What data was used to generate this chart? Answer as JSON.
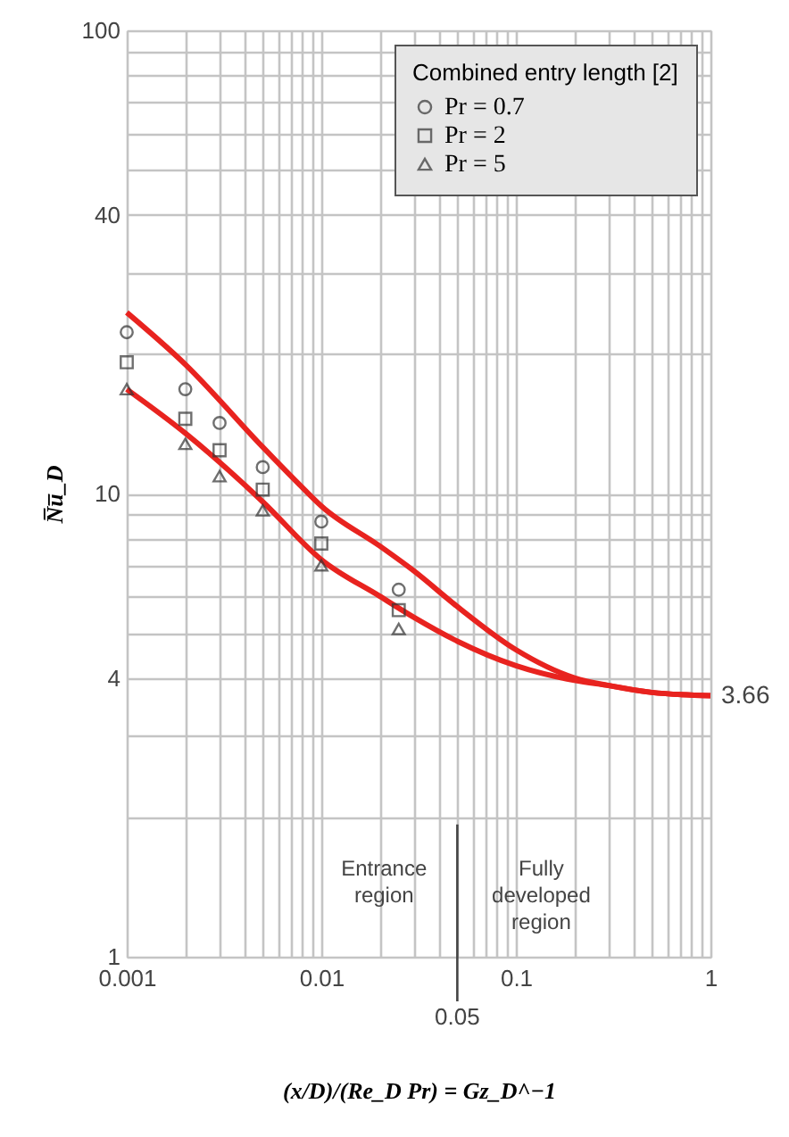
{
  "chart_data": {
    "type": "line",
    "xlabel": "(x/D)/(Re_D Pr) = Gz_D^−1",
    "ylabel": "N̅u̅_D",
    "legend_title": "Combined entry length [2]",
    "legend": "top right",
    "log": "xy",
    "grid": true,
    "xlim": [
      0.001,
      1
    ],
    "ylim": [
      1,
      100
    ],
    "xticks": [
      0.001,
      {
        "value": 0.002,
        "label": null
      },
      {
        "value": 0.003,
        "label": null
      },
      {
        "value": 0.004,
        "label": null
      },
      {
        "value": 0.005,
        "label": null
      },
      {
        "value": 0.006,
        "label": null
      },
      {
        "value": 0.007,
        "label": null
      },
      {
        "value": 0.008,
        "label": null
      },
      {
        "value": 0.009,
        "label": null
      },
      0.01,
      {
        "value": 0.02,
        "label": null
      },
      {
        "value": 0.03,
        "label": null
      },
      {
        "value": 0.04,
        "label": null
      },
      {
        "value": 0.05,
        "label": null
      },
      {
        "value": 0.06,
        "label": null
      },
      {
        "value": 0.07,
        "label": null
      },
      {
        "value": 0.08,
        "label": null
      },
      {
        "value": 0.09,
        "label": null
      },
      0.1,
      {
        "value": 0.2,
        "label": null
      },
      {
        "value": 0.3,
        "label": null
      },
      {
        "value": 0.4,
        "label": null
      },
      {
        "value": 0.5,
        "label": null
      },
      {
        "value": 0.6,
        "label": null
      },
      {
        "value": 0.7,
        "label": null
      },
      {
        "value": 0.8,
        "label": null
      },
      {
        "value": 0.9,
        "label": null
      },
      1
    ],
    "yticks": [
      1,
      {
        "value": 2,
        "label": null
      },
      {
        "value": 3,
        "label": null
      },
      4,
      {
        "value": 5,
        "label": null
      },
      {
        "value": 6,
        "label": null
      },
      {
        "value": 7,
        "label": null
      },
      {
        "value": 8,
        "label": null
      },
      {
        "value": 9,
        "label": null
      },
      10,
      {
        "value": 20,
        "label": null
      },
      {
        "value": 30,
        "label": null
      },
      40,
      {
        "value": 50,
        "label": null
      },
      {
        "value": 60,
        "label": null
      },
      {
        "value": 70,
        "label": null
      },
      {
        "value": 80,
        "label": null
      },
      {
        "value": 90,
        "label": null
      },
      100
    ],
    "series": [
      {
        "type": "line",
        "color": "#e8231f",
        "x": [
          0.001,
          0.002,
          0.005,
          0.008,
          0.01,
          0.02,
          0.03,
          0.05,
          0.1,
          0.2,
          0.3,
          0.5,
          1
        ],
        "values": [
          24.6,
          19,
          12.6,
          10.3,
          9.4,
          7.7,
          6.8,
          5.7,
          4.6,
          4.0,
          3.85,
          3.72,
          3.66
        ]
      },
      {
        "type": "line",
        "color": "#e8231f",
        "x": [
          0.001,
          0.002,
          0.005,
          0.01,
          0.02,
          0.03,
          0.05,
          0.1,
          0.2,
          0.3,
          0.5,
          1
        ],
        "values": [
          16.8,
          13.5,
          9.6,
          7.2,
          6.0,
          5.4,
          4.8,
          4.25,
          3.95,
          3.85,
          3.72,
          3.66
        ]
      },
      {
        "type": "scatter",
        "name": "Pr = 0.7",
        "marker": "circle",
        "color": "#333333",
        "x": [
          0.001,
          0.002,
          0.003,
          0.005,
          0.01,
          0.025
        ],
        "values": [
          22.3,
          16.8,
          14.2,
          11.4,
          8.7,
          6.2
        ]
      },
      {
        "type": "scatter",
        "name": "Pr = 2",
        "marker": "square",
        "color": "#333333",
        "x": [
          0.001,
          0.002,
          0.003,
          0.005,
          0.01,
          0.025
        ],
        "values": [
          19.2,
          14.5,
          12.4,
          10.2,
          7.8,
          5.6
        ]
      },
      {
        "type": "scatter",
        "name": "Pr = 5",
        "marker": "triangle",
        "color": "#333333",
        "x": [
          0.001,
          0.002,
          0.003,
          0.005,
          0.01,
          0.025
        ],
        "values": [
          16.8,
          12.8,
          10.9,
          9.2,
          7.0,
          5.1
        ]
      }
    ],
    "ref_lines": [
      {
        "axis": "x",
        "value": 0.05,
        "label": "0.05",
        "color": "#444444"
      }
    ],
    "annotations": [
      {
        "text": "3.66",
        "x": 1,
        "y": 3.66
      },
      "Entrance region",
      "Fully developed region"
    ]
  }
}
